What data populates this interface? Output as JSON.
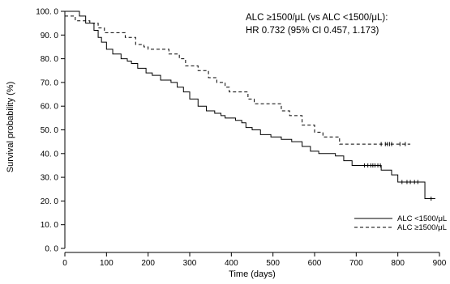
{
  "chart_data": {
    "type": "line",
    "subtype": "kaplan-meier",
    "xlabel": "Time (days)",
    "ylabel": "Survival probability (%)",
    "xlim": [
      0,
      900
    ],
    "ylim": [
      0,
      100
    ],
    "x_ticks": [
      0,
      100,
      200,
      300,
      400,
      500,
      600,
      700,
      800,
      900
    ],
    "y_ticks": [
      0,
      10,
      20,
      30,
      40,
      50,
      60,
      70,
      80,
      90,
      100
    ],
    "x_tick_labels": [
      "0",
      "100",
      "200",
      "300",
      "400",
      "500",
      "600",
      "700",
      "800",
      "900"
    ],
    "y_tick_labels": [
      "0. 0",
      "10. 0",
      "20. 0",
      "30. 0",
      "40. 0",
      "50. 0",
      "60. 0",
      "70. 0",
      "80. 0",
      "90. 0",
      "100. 0"
    ],
    "grid": false,
    "legend_position": "bottom-right",
    "annotation": {
      "line1": "ALC ≥1500/μL (vs ALC <1500/μL):",
      "line2": "HR 0.732 (95% CI 0.457, 1.173)"
    },
    "series": [
      {
        "name": "ALC <1500/μL",
        "style": "solid",
        "steps": [
          [
            0,
            100
          ],
          [
            20,
            100
          ],
          [
            35,
            98
          ],
          [
            50,
            95
          ],
          [
            70,
            92
          ],
          [
            80,
            89
          ],
          [
            88,
            87
          ],
          [
            100,
            84
          ],
          [
            115,
            82
          ],
          [
            135,
            80
          ],
          [
            150,
            79
          ],
          [
            160,
            78
          ],
          [
            175,
            76
          ],
          [
            195,
            74
          ],
          [
            210,
            73
          ],
          [
            230,
            71
          ],
          [
            255,
            70
          ],
          [
            270,
            68
          ],
          [
            285,
            66
          ],
          [
            300,
            63
          ],
          [
            320,
            60
          ],
          [
            340,
            58
          ],
          [
            360,
            57
          ],
          [
            375,
            56
          ],
          [
            385,
            55
          ],
          [
            410,
            54
          ],
          [
            425,
            53
          ],
          [
            435,
            51
          ],
          [
            450,
            50
          ],
          [
            470,
            48
          ],
          [
            495,
            47
          ],
          [
            520,
            46
          ],
          [
            545,
            45
          ],
          [
            570,
            43
          ],
          [
            590,
            41
          ],
          [
            610,
            40
          ],
          [
            650,
            39
          ],
          [
            670,
            37
          ],
          [
            690,
            35
          ],
          [
            760,
            33
          ],
          [
            785,
            31
          ],
          [
            800,
            28
          ],
          [
            865,
            21
          ],
          [
            890,
            21
          ]
        ],
        "censor_x": [
          720,
          728,
          735,
          740,
          745,
          752,
          758,
          810,
          822,
          830,
          840,
          848,
          880
        ]
      },
      {
        "name": "ALC ≥1500/μL",
        "style": "dashed",
        "steps": [
          [
            0,
            98
          ],
          [
            25,
            96
          ],
          [
            60,
            95
          ],
          [
            80,
            93
          ],
          [
            95,
            91
          ],
          [
            145,
            89
          ],
          [
            170,
            86
          ],
          [
            190,
            85
          ],
          [
            200,
            84
          ],
          [
            250,
            82
          ],
          [
            275,
            80
          ],
          [
            290,
            77
          ],
          [
            320,
            75
          ],
          [
            345,
            72
          ],
          [
            365,
            70
          ],
          [
            385,
            68
          ],
          [
            395,
            66
          ],
          [
            440,
            63
          ],
          [
            455,
            61
          ],
          [
            520,
            58
          ],
          [
            540,
            56
          ],
          [
            570,
            52
          ],
          [
            600,
            49
          ],
          [
            620,
            47
          ],
          [
            660,
            44
          ],
          [
            830,
            44
          ]
        ],
        "censor_x": [
          760,
          770,
          775,
          780,
          785,
          805,
          818
        ]
      }
    ]
  }
}
